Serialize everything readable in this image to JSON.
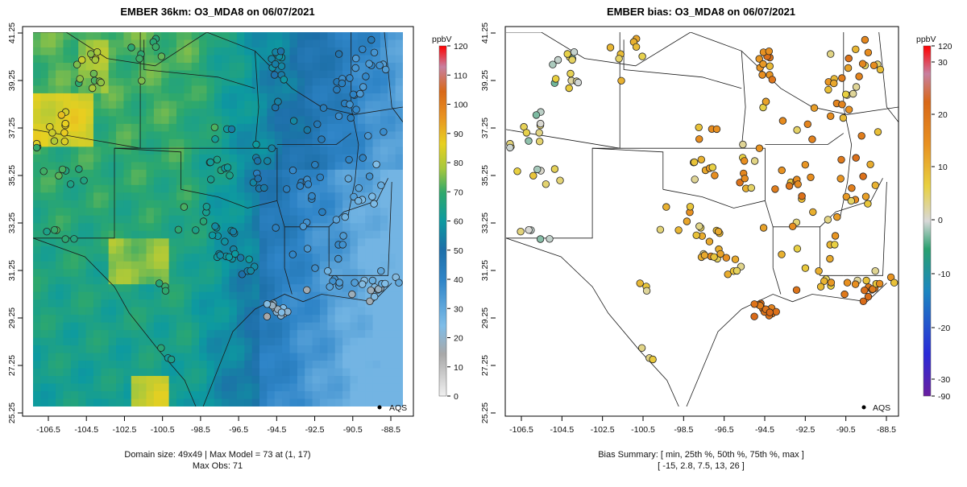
{
  "chart_data": [
    {
      "type": "heatmap",
      "title": "EMBER 36km: O3_MDA8 on 06/07/2021",
      "x_ticks": [
        "-106.5",
        "-104.5",
        "-102.5",
        "-100.5",
        "-98.5",
        "-96.5",
        "-94.5",
        "-92.5",
        "-90.5",
        "-88.5"
      ],
      "y_ticks": [
        "41.25",
        "39.25",
        "37.25",
        "35.25",
        "33.25",
        "31.25",
        "29.25",
        "27.25",
        "25.25"
      ],
      "xlim": [
        -107.6,
        -88.0
      ],
      "ylim": [
        25.25,
        41.25
      ],
      "colorbar": {
        "unit": "ppbV",
        "ticks": [
          "0",
          "10",
          "20",
          "30",
          "40",
          "50",
          "60",
          "70",
          "80",
          "90",
          "100",
          "110",
          "120"
        ],
        "range": [
          0,
          120
        ]
      },
      "legend": {
        "label": "AQS",
        "position": "bottom-right"
      },
      "footer": [
        "Domain size: 49x49 | Max Model = 73 at (1, 17)",
        "Max Obs: 71"
      ],
      "stats": {
        "domain": "49x49",
        "max_model": 73,
        "max_obs": 71
      }
    },
    {
      "type": "scatter",
      "title": "EMBER bias: O3_MDA8 on 06/07/2021",
      "x_ticks": [
        "-106.5",
        "-104.5",
        "-102.5",
        "-100.5",
        "-98.5",
        "-96.5",
        "-94.5",
        "-92.5",
        "-90.5",
        "-88.5"
      ],
      "y_ticks": [
        "41.25",
        "39.25",
        "37.25",
        "35.25",
        "33.25",
        "31.25",
        "29.25",
        "27.25",
        "25.25"
      ],
      "xlim": [
        -107.6,
        -88.0
      ],
      "ylim": [
        25.25,
        41.25
      ],
      "colorbar": {
        "unit": "ppbV",
        "ticks": [
          "-90",
          "-30",
          "-20",
          "-10",
          "0",
          "10",
          "20",
          "30",
          "120"
        ]
      },
      "legend": {
        "label": "AQS",
        "position": "bottom-right"
      },
      "footer": [
        "Bias Summary: [ min, 25th %, 50th %, 75th %, max ]",
        "[ -15,   2.8,   7.5,   13,   26 ]"
      ],
      "bias_summary": {
        "min": -15,
        "p25": 2.8,
        "p50": 7.5,
        "p75": 13,
        "max": 26
      }
    }
  ]
}
